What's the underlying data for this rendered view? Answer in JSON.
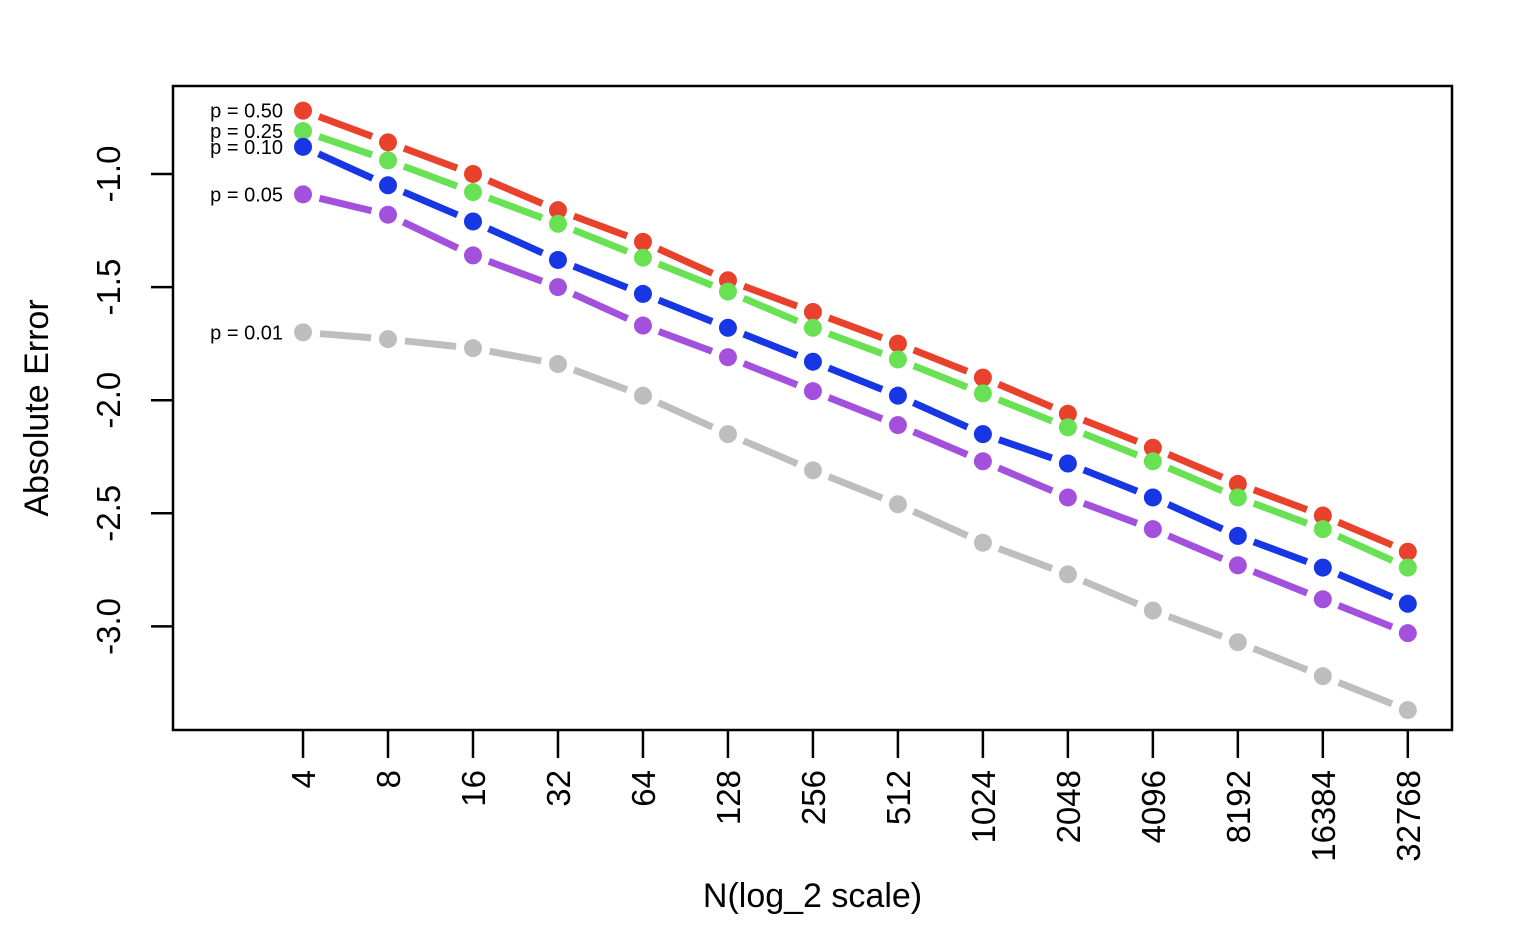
{
  "chart_data": {
    "type": "line",
    "title": "",
    "xlabel": "N(log_2 scale)",
    "ylabel": "Absolute Error",
    "x_scale": "log2",
    "grid": false,
    "legend_position": "left-of-first-points",
    "x": [
      4,
      8,
      16,
      32,
      64,
      128,
      256,
      512,
      1024,
      2048,
      4096,
      8192,
      16384,
      32768
    ],
    "x_tick_labels": [
      "4",
      "8",
      "16",
      "32",
      "64",
      "128",
      "256",
      "512",
      "1024",
      "2048",
      "4096",
      "8192",
      "16384",
      "32768"
    ],
    "y_ticks": [
      -1.0,
      -1.5,
      -2.0,
      -2.5,
      -3.0
    ],
    "y_tick_labels": [
      "-1.0",
      "-1.5",
      "-2.0",
      "-2.5",
      "-3.0"
    ],
    "xlim_log2": [
      0.47,
      15.52
    ],
    "ylim": [
      -0.611,
      -3.458
    ],
    "axis_color": "#000000",
    "series": [
      {
        "name": "p = 0.50",
        "color": "#E8412C",
        "values": [
          -0.72,
          -0.86,
          -1.0,
          -1.16,
          -1.3,
          -1.47,
          -1.61,
          -1.75,
          -1.9,
          -2.06,
          -2.21,
          -2.37,
          -2.51,
          -2.67
        ]
      },
      {
        "name": "p = 0.25",
        "color": "#68E155",
        "values": [
          -0.81,
          -0.94,
          -1.08,
          -1.22,
          -1.37,
          -1.52,
          -1.68,
          -1.82,
          -1.97,
          -2.12,
          -2.27,
          -2.43,
          -2.57,
          -2.74
        ]
      },
      {
        "name": "p = 0.10",
        "color": "#1736E4",
        "values": [
          -0.88,
          -1.05,
          -1.21,
          -1.38,
          -1.53,
          -1.68,
          -1.83,
          -1.98,
          -2.15,
          -2.28,
          -2.43,
          -2.6,
          -2.74,
          -2.9
        ]
      },
      {
        "name": "p = 0.05",
        "color": "#A351DC",
        "values": [
          -1.09,
          -1.18,
          -1.36,
          -1.5,
          -1.67,
          -1.81,
          -1.96,
          -2.11,
          -2.27,
          -2.43,
          -2.57,
          -2.73,
          -2.88,
          -3.03
        ]
      },
      {
        "name": "p = 0.01",
        "color": "#BEBEBE",
        "values": [
          -1.7,
          -1.73,
          -1.77,
          -1.84,
          -1.98,
          -2.15,
          -2.31,
          -2.46,
          -2.63,
          -2.77,
          -2.93,
          -3.07,
          -3.22,
          -3.37
        ]
      }
    ],
    "legend": {
      "entries": [
        "p = 0.50",
        "p = 0.25",
        "p = 0.10",
        "p = 0.05",
        "p = 0.01"
      ]
    }
  }
}
